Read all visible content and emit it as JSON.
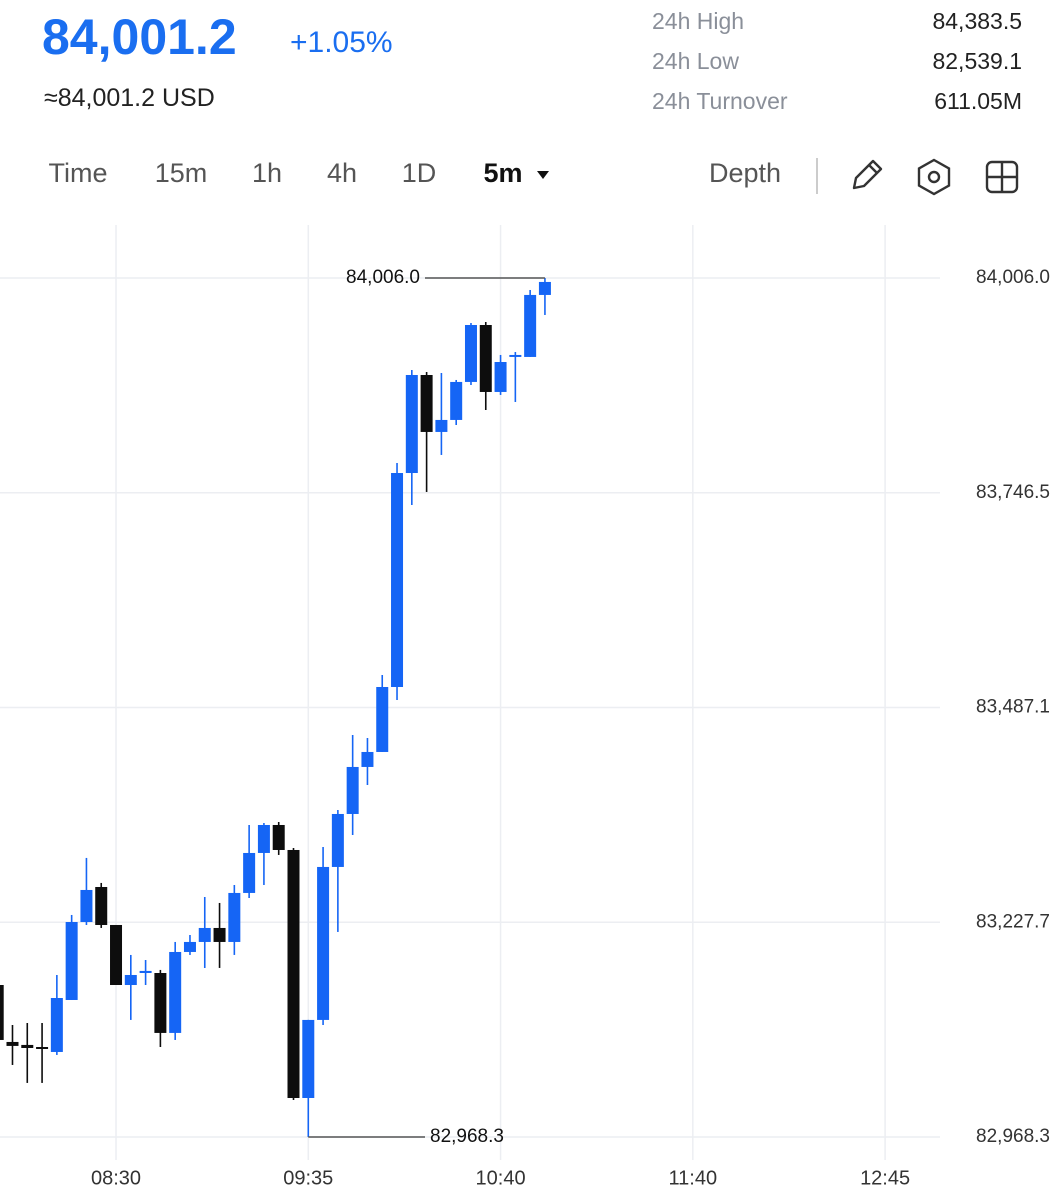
{
  "header": {
    "price": "84,001.2",
    "change": "+1.05%",
    "approx": "≈84,001.2 USD",
    "stats": [
      {
        "label": "24h High",
        "value": "84,383.5"
      },
      {
        "label": "24h Low",
        "value": "82,539.1"
      },
      {
        "label": "24h Turnover",
        "value": "611.05M"
      }
    ]
  },
  "toolbar": {
    "tabs": [
      "Time",
      "15m",
      "1h",
      "4h",
      "1D"
    ],
    "active": "5m",
    "depth": "Depth"
  },
  "chart_data": {
    "type": "candlestick",
    "up_color": "#1565f5",
    "down_color": "#0d0d0d",
    "grid": true,
    "categories": [
      null,
      null,
      null,
      null,
      null,
      null,
      null,
      null,
      "08:30",
      null,
      null,
      null,
      null,
      null,
      null,
      null,
      null,
      null,
      null,
      null,
      null,
      "09:35",
      null,
      null,
      null,
      null,
      null,
      null,
      null,
      null,
      null,
      null,
      null,
      null,
      "10:40",
      null,
      null,
      null,
      null,
      null,
      null,
      null,
      null,
      null,
      null,
      null,
      null,
      "11:40",
      null,
      null,
      null,
      null,
      null,
      null,
      null,
      null,
      null,
      null,
      null,
      null,
      "12:45",
      null,
      null,
      null
    ],
    "open": [
      83151.9,
      83083.1,
      83079.5,
      83077.0,
      83071.0,
      83133.8,
      83228.0,
      83270.3,
      83224.4,
      83151.9,
      83166.4,
      83166.4,
      83094.0,
      83191.8,
      83203.9,
      83220.8,
      83203.9,
      83263.1,
      83311.4,
      83345.2,
      83315.0,
      83015.4,
      83109.7,
      83294.5,
      83358.5,
      83415.3,
      83433.4,
      83511.9,
      83770.4,
      83888.8,
      83820.0,
      83834.5,
      83880.4,
      83949.2,
      83868.3,
      83910.6,
      83910.6,
      83985.5,
      null,
      null,
      null,
      null,
      null,
      null,
      null,
      null,
      null,
      null,
      null,
      null,
      null,
      null,
      null,
      null,
      null,
      null,
      null,
      null,
      null,
      null,
      null,
      null,
      null,
      null
    ],
    "high": [
      83182.1,
      83103.6,
      83106.0,
      83106.0,
      83164.0,
      83236.5,
      83305.4,
      83275.2,
      83224.4,
      83188.2,
      83182.1,
      83170.1,
      83203.9,
      83212.3,
      83258.2,
      83251.0,
      83272.7,
      83345.2,
      83347.6,
      83348.8,
      83317.4,
      83109.7,
      83318.6,
      83363.3,
      83453.9,
      83450.3,
      83526.4,
      83782.5,
      83894.9,
      83892.4,
      83891.2,
      83882.8,
      83951.6,
      83952.8,
      83913.0,
      83916.6,
      83991.5,
      84006.0,
      null,
      null,
      null,
      null,
      null,
      null,
      null,
      null,
      null,
      null,
      null,
      null,
      null,
      null,
      null,
      null,
      null,
      null,
      null,
      null,
      null,
      null,
      null,
      null,
      null,
      null
    ],
    "low": [
      83079.5,
      83055.3,
      83033.6,
      83033.6,
      83067.4,
      83133.8,
      83224.4,
      83220.8,
      83151.9,
      83109.7,
      83151.9,
      83077.0,
      83085.5,
      83188.2,
      83172.5,
      83172.5,
      83188.2,
      83257.0,
      83272.7,
      83309.0,
      83013.0,
      82968.3,
      83103.6,
      83216.0,
      83333.1,
      83393.5,
      83433.4,
      83496.2,
      83731.8,
      83747.5,
      83792.2,
      83828.4,
      83876.7,
      83846.5,
      83864.7,
      83856.2,
      83910.6,
      83961.3,
      null,
      null,
      null,
      null,
      null,
      null,
      null,
      null,
      null,
      null,
      null,
      null,
      null,
      null,
      null,
      null,
      null,
      null,
      null,
      null,
      null,
      null,
      null,
      null,
      null,
      null
    ],
    "close": [
      83085.5,
      83078.3,
      83075.8,
      83074.6,
      83136.2,
      83228.0,
      83266.7,
      83224.4,
      83151.9,
      83164.0,
      83168.9,
      83094.0,
      83191.8,
      83203.9,
      83220.8,
      83203.9,
      83263.1,
      83311.4,
      83345.2,
      83315.0,
      83015.4,
      83109.7,
      83294.5,
      83358.5,
      83415.3,
      83433.4,
      83511.9,
      83770.4,
      83888.8,
      83820.0,
      83834.5,
      83880.4,
      83949.2,
      83868.3,
      83904.5,
      83913.0,
      83985.5,
      84001.2,
      null,
      null,
      null,
      null,
      null,
      null,
      null,
      null,
      null,
      null,
      null,
      null,
      null,
      null,
      null,
      null,
      null,
      null,
      null,
      null,
      null,
      null,
      null,
      null,
      null,
      null
    ],
    "ylim": [
      82940.5,
      84070.0
    ],
    "yticks": [
      {
        "value": 82968.3,
        "label": "82,968.3"
      },
      {
        "value": 83227.7,
        "label": "83,227.7"
      },
      {
        "value": 83487.1,
        "label": "83,487.1"
      },
      {
        "value": 83746.5,
        "label": "83,746.5"
      },
      {
        "value": 84006.0,
        "label": "84,006.0"
      }
    ],
    "max_marker": {
      "value": 84006.0,
      "label": "84,006.0",
      "index": 37
    },
    "min_marker": {
      "value": 82968.3,
      "label": "82,968.3",
      "index": 21
    }
  }
}
